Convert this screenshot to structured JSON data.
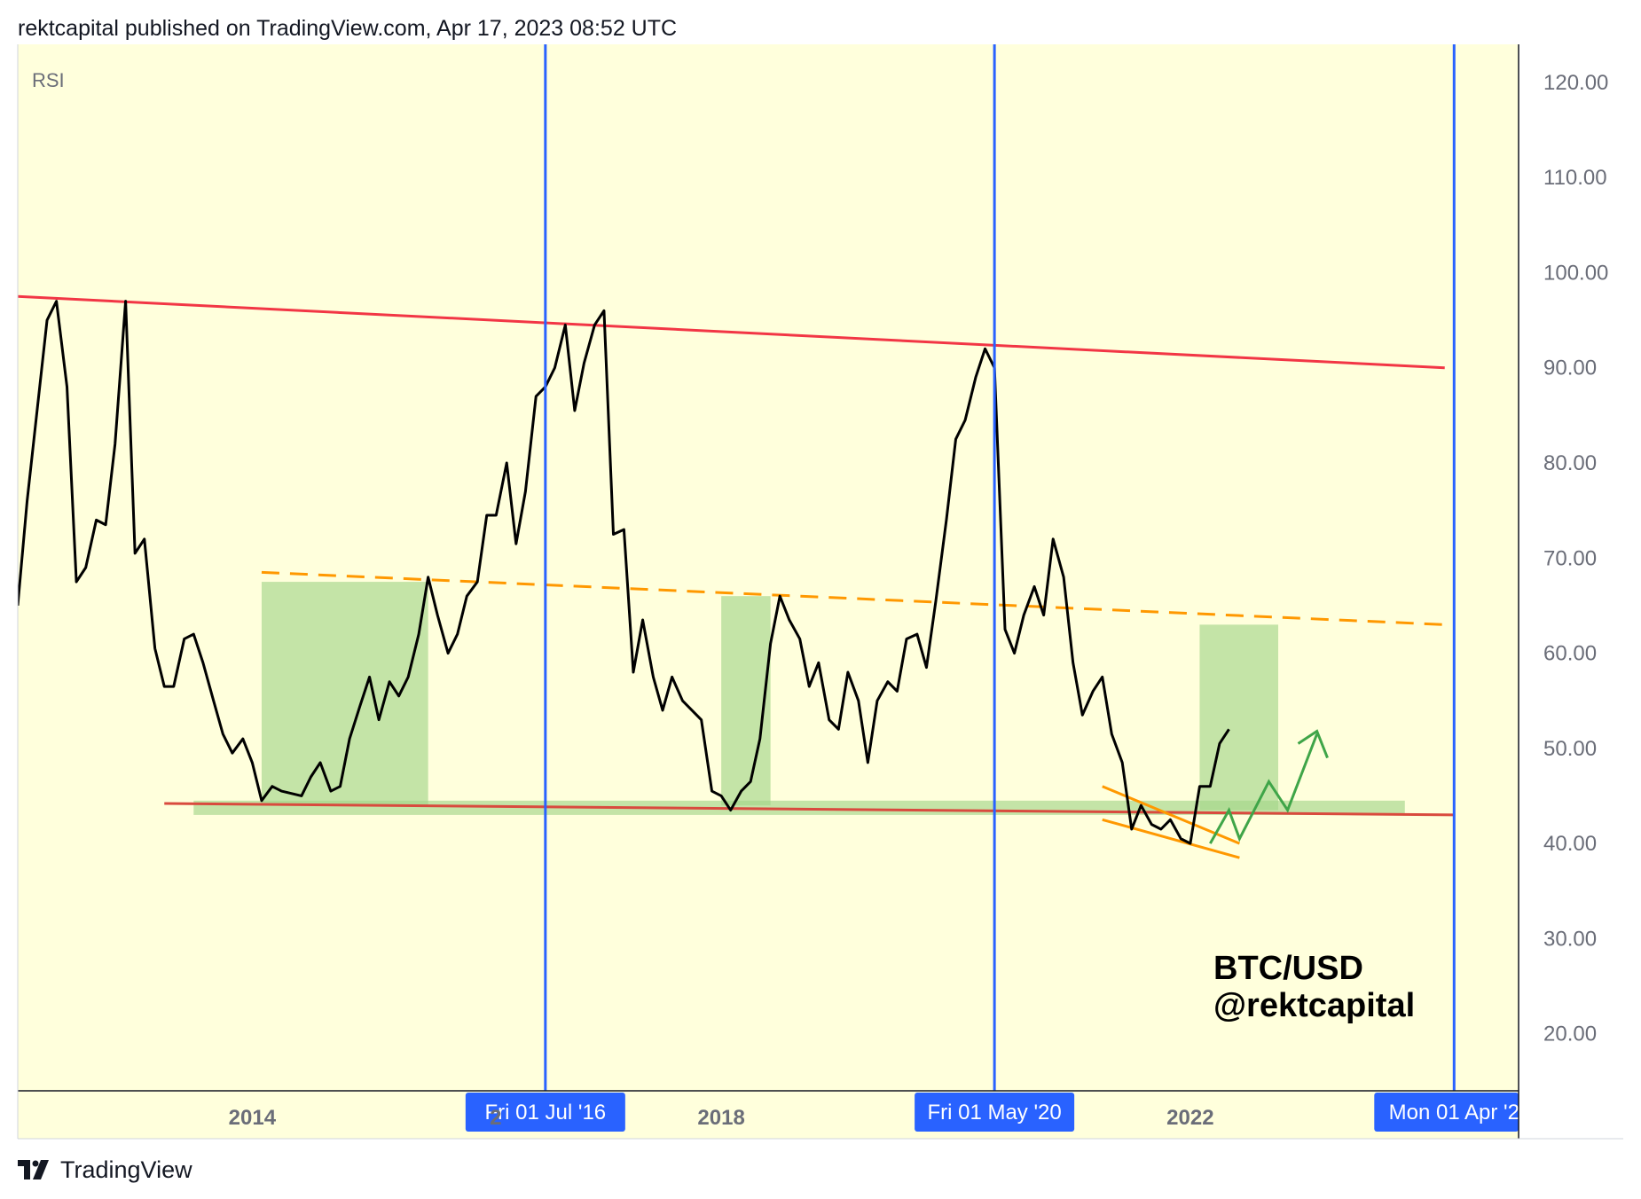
{
  "header": {
    "published": "rektcapital published on TradingView.com, Apr 17, 2023 08:52 UTC"
  },
  "footer": {
    "brand": "TradingView",
    "logo_icon": "tradingview-logo-icon"
  },
  "chart_data": {
    "type": "line",
    "pane_label": "RSI",
    "watermark": [
      "BTC/USD",
      "@rektcapital"
    ],
    "y_ticks": [
      "120.00",
      "110.00",
      "100.00",
      "90.00",
      "80.00",
      "70.00",
      "60.00",
      "50.00",
      "40.00",
      "30.00",
      "20.00"
    ],
    "ylim": [
      14,
      124
    ],
    "xlim": [
      2012.0,
      2024.8
    ],
    "x_ticks": [
      {
        "value": 2014,
        "label": "2014"
      },
      {
        "value": 2018,
        "label": "2018"
      },
      {
        "value": 2022,
        "label": "2022"
      }
    ],
    "hidden_tick": {
      "value": 2016,
      "label": "2"
    },
    "vertical_markers": [
      {
        "x": 2016.5,
        "label": "Fri 01 Jul '16"
      },
      {
        "x": 2020.33,
        "label": "Fri 01 May '20"
      },
      {
        "x": 2024.25,
        "label": "Mon 01 Apr '2"
      }
    ],
    "series": [
      {
        "color": "#000000",
        "points": [
          [
            2012.0,
            65
          ],
          [
            2012.08,
            76
          ],
          [
            2012.25,
            95
          ],
          [
            2012.33,
            97
          ],
          [
            2012.42,
            88
          ],
          [
            2012.5,
            67.5
          ],
          [
            2012.58,
            69
          ],
          [
            2012.67,
            74
          ],
          [
            2012.75,
            73.5
          ],
          [
            2012.83,
            82
          ],
          [
            2012.92,
            97
          ],
          [
            2013.0,
            70.5
          ],
          [
            2013.08,
            72
          ],
          [
            2013.17,
            60.5
          ],
          [
            2013.25,
            56.5
          ],
          [
            2013.33,
            56.5
          ],
          [
            2013.42,
            61.5
          ],
          [
            2013.5,
            62
          ],
          [
            2013.58,
            59
          ],
          [
            2013.67,
            55
          ],
          [
            2013.75,
            51.5
          ],
          [
            2013.83,
            49.5
          ],
          [
            2013.92,
            51
          ],
          [
            2014.0,
            48.5
          ],
          [
            2014.08,
            44.5
          ],
          [
            2014.17,
            46
          ],
          [
            2014.25,
            45.5
          ],
          [
            2014.42,
            45
          ],
          [
            2014.5,
            47
          ],
          [
            2014.58,
            48.5
          ],
          [
            2014.67,
            45.5
          ],
          [
            2014.75,
            46
          ],
          [
            2014.83,
            51
          ],
          [
            2014.92,
            54.5
          ],
          [
            2015.0,
            57.5
          ],
          [
            2015.08,
            53
          ],
          [
            2015.17,
            57
          ],
          [
            2015.25,
            55.5
          ],
          [
            2015.33,
            57.5
          ],
          [
            2015.42,
            62
          ],
          [
            2015.5,
            68
          ],
          [
            2015.58,
            64
          ],
          [
            2015.67,
            60
          ],
          [
            2015.75,
            62
          ],
          [
            2015.83,
            66
          ],
          [
            2015.92,
            67.5
          ],
          [
            2016.0,
            74.5
          ],
          [
            2016.08,
            74.5
          ],
          [
            2016.17,
            80
          ],
          [
            2016.25,
            71.5
          ],
          [
            2016.33,
            77
          ],
          [
            2016.42,
            87
          ],
          [
            2016.5,
            88
          ],
          [
            2016.58,
            90
          ],
          [
            2016.67,
            94.5
          ],
          [
            2016.75,
            85.5
          ],
          [
            2016.83,
            90.5
          ],
          [
            2016.92,
            94.5
          ],
          [
            2017.0,
            96
          ],
          [
            2017.08,
            72.5
          ],
          [
            2017.17,
            73
          ],
          [
            2017.25,
            58
          ],
          [
            2017.33,
            63.5
          ],
          [
            2017.42,
            57.5
          ],
          [
            2017.5,
            54
          ],
          [
            2017.58,
            57.5
          ],
          [
            2017.67,
            55
          ],
          [
            2017.75,
            54
          ],
          [
            2017.83,
            53
          ],
          [
            2017.92,
            45.5
          ],
          [
            2018.0,
            45
          ],
          [
            2018.08,
            43.5
          ],
          [
            2018.17,
            45.5
          ],
          [
            2018.25,
            46.5
          ],
          [
            2018.33,
            51
          ],
          [
            2018.42,
            61
          ],
          [
            2018.5,
            66
          ],
          [
            2018.58,
            63.5
          ],
          [
            2018.67,
            61.5
          ],
          [
            2018.75,
            56.5
          ],
          [
            2018.83,
            59
          ],
          [
            2018.92,
            53
          ],
          [
            2019.0,
            52
          ],
          [
            2019.08,
            58
          ],
          [
            2019.17,
            55
          ],
          [
            2019.25,
            48.5
          ],
          [
            2019.33,
            55
          ],
          [
            2019.42,
            57
          ],
          [
            2019.5,
            56
          ],
          [
            2019.58,
            61.5
          ],
          [
            2019.67,
            62
          ],
          [
            2019.75,
            58.5
          ],
          [
            2019.83,
            65.5
          ],
          [
            2019.92,
            74
          ],
          [
            2020.0,
            82.5
          ],
          [
            2020.08,
            84.5
          ],
          [
            2020.17,
            89
          ],
          [
            2020.25,
            92
          ],
          [
            2020.33,
            90
          ],
          [
            2020.42,
            62.5
          ],
          [
            2020.5,
            60
          ],
          [
            2020.58,
            64
          ],
          [
            2020.67,
            67
          ],
          [
            2020.75,
            64
          ],
          [
            2020.83,
            72
          ],
          [
            2020.92,
            68
          ],
          [
            2021.0,
            59
          ],
          [
            2021.08,
            53.5
          ],
          [
            2021.17,
            56
          ],
          [
            2021.25,
            57.5
          ],
          [
            2021.33,
            51.5
          ],
          [
            2021.42,
            48.5
          ],
          [
            2021.5,
            41.5
          ],
          [
            2021.58,
            44
          ],
          [
            2021.67,
            42
          ],
          [
            2021.75,
            41.5
          ],
          [
            2021.83,
            42.5
          ],
          [
            2021.92,
            40.5
          ],
          [
            2022.0,
            40
          ],
          [
            2022.08,
            46
          ],
          [
            2022.17,
            46
          ],
          [
            2022.25,
            50.5
          ],
          [
            2022.33,
            52
          ]
        ]
      }
    ],
    "overlays": {
      "resistance_red": {
        "from": [
          2012.0,
          97.5
        ],
        "to": [
          2024.17,
          90.0
        ],
        "color": "#f23645"
      },
      "support_red": {
        "from": [
          2013.25,
          44.2
        ],
        "to": [
          2024.25,
          43.0
        ],
        "color": "#d94a3e"
      },
      "dashed_orange": {
        "from": [
          2014.08,
          68.5
        ],
        "to": [
          2024.17,
          63.0
        ],
        "color": "#ff9800"
      },
      "wedge_upper": {
        "from": [
          2021.25,
          46.0
        ],
        "to": [
          2022.42,
          40.0
        ],
        "color": "#ff9800"
      },
      "wedge_lower": {
        "from": [
          2021.25,
          42.5
        ],
        "to": [
          2022.42,
          38.5
        ],
        "color": "#ff9800"
      },
      "green_boxes": [
        {
          "x0": 2014.08,
          "x1": 2015.5,
          "y0": 44.0,
          "y1": 67.5
        },
        {
          "x0": 2018.0,
          "x1": 2018.42,
          "y0": 44.0,
          "y1": 66.0
        },
        {
          "x0": 2022.08,
          "x1": 2022.75,
          "y0": 43.5,
          "y1": 63.0
        },
        {
          "x0": 2013.5,
          "x1": 2023.83,
          "y0": 43.0,
          "y1": 44.5
        }
      ],
      "projection_green": {
        "points": [
          [
            2022.17,
            40
          ],
          [
            2022.33,
            43.5
          ],
          [
            2022.42,
            40.5
          ],
          [
            2022.67,
            46.5
          ],
          [
            2022.83,
            43.5
          ],
          [
            2023.08,
            51.5
          ]
        ],
        "arrowhead": [
          [
            2022.92,
            50.5
          ],
          [
            2023.08,
            51.8
          ],
          [
            2023.17,
            49
          ]
        ],
        "color": "#3fa548"
      }
    },
    "colors": {
      "background": "#ffffdc",
      "marker": "#2962ff",
      "marker_label_bg": "#2962ff",
      "axis_text": "#6a6d78",
      "green_fill": "#a5d68b"
    }
  }
}
